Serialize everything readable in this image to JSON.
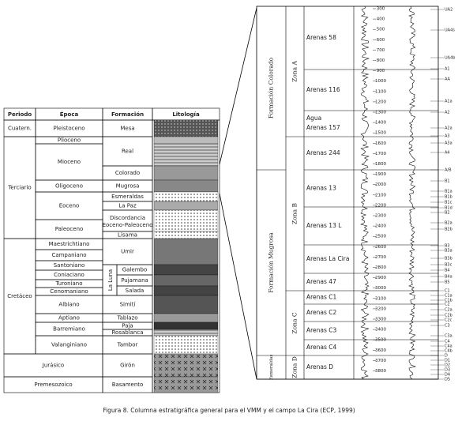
{
  "table": {
    "headers": [
      "Periodo",
      "Época",
      "Formación",
      "Litología"
    ],
    "periods": [
      "Cuatern.",
      "Terciario",
      "Cretáceo",
      "Jurásico",
      "Premesozoico"
    ],
    "epochs": [
      "Pleistoceno",
      "Plioceno",
      "Mioceno",
      "Oligoceno",
      "Eoceno",
      "Paleoceno",
      "Maestrichtiano",
      "Campaniano",
      "Santoniano",
      "Coniaciano",
      "Turoniano",
      "Cenomaniano",
      "Albiano",
      "Aptiano",
      "Barremiano",
      "Valanginiano"
    ],
    "formations": [
      "Mesa",
      "Real",
      "Colorado",
      "Mugrosa",
      "Esmeraldas",
      "La Paz",
      "Lisama",
      "Umir",
      "Galembo",
      "Pujamana",
      "Salada",
      "Simití",
      "Tablazo",
      "Paja",
      "Rosablanca",
      "Tambor",
      "Girón",
      "Basamento"
    ],
    "discordancia": [
      "Discordancia",
      "Eoceno-Paleoceno"
    ],
    "la_luna": "La Luna"
  },
  "column": {
    "formations": [
      "Formación Colorado",
      "Formación Mugrosa",
      "Esmeraldas"
    ],
    "zones": [
      "Zona A",
      "Zona B",
      "Zona C",
      "Zona D"
    ],
    "agua": "Agua",
    "sands": [
      "Arenas 58",
      "Arenas 116",
      "Arenas 157",
      "Arenas 244",
      "Arenas 13",
      "Arenas 13 L",
      "Arenas La Cira",
      "Arenas 47",
      "Arenas C1",
      "Arenas C2",
      "Arenas C3",
      "Arenas C4",
      "Arenas D"
    ],
    "depths": [
      300,
      400,
      500,
      600,
      700,
      800,
      900,
      1000,
      1100,
      1200,
      1300,
      1400,
      1500,
      1600,
      1700,
      1800,
      1900,
      2000,
      2100,
      2200,
      2300,
      2400,
      2500,
      2600,
      2700,
      2800,
      2900,
      3000,
      3100,
      3200,
      3300,
      3400,
      3500,
      3600,
      3700,
      3800
    ],
    "markers": [
      "UA2",
      "UA4s",
      "UA4b",
      "A1",
      "AA",
      "A1a",
      "A2",
      "A2a",
      "A3",
      "A3a",
      "A4",
      "A/B",
      "B1",
      "B1a",
      "B1b",
      "B1c",
      "B1d",
      "B2",
      "B2a",
      "B2b",
      "B3",
      "B3a",
      "B3b",
      "B3c",
      "B4",
      "B4a",
      "B5",
      "C1",
      "C1a",
      "C1b",
      "C2",
      "C2a",
      "C2b",
      "C2c",
      "C3",
      "C3a",
      "C4",
      "C4a",
      "C4b",
      "D",
      "D1",
      "D2",
      "D3",
      "D4",
      "D5"
    ]
  },
  "caption": "Figura 8. Columna estratigráfica general para el VMM y el campo La Cira (ECP, 1999)"
}
